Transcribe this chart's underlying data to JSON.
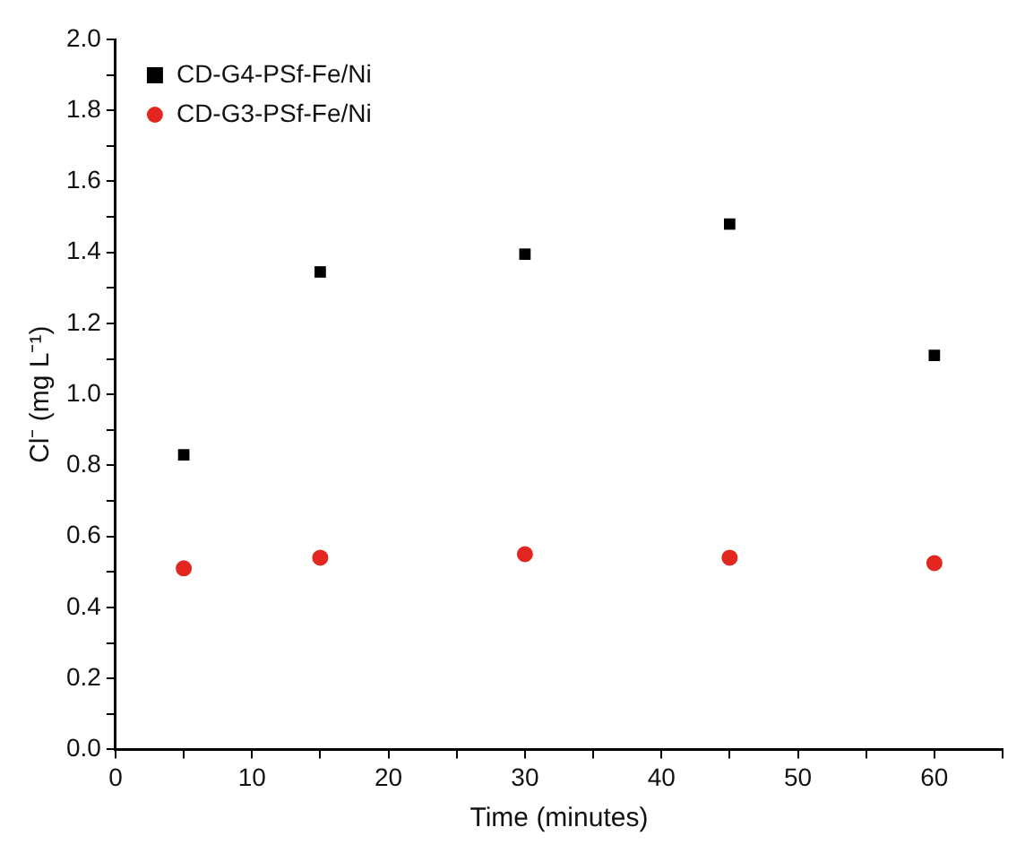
{
  "chart_data": {
    "type": "scatter",
    "xlabel": "Time (minutes)",
    "ylabel": "Cl⁻ (mg L⁻¹)",
    "x": [
      5,
      15,
      30,
      45,
      60
    ],
    "series": [
      {
        "name": "CD-G4-PSf-Fe/Ni",
        "color": "#000000",
        "marker": "square",
        "values": [
          0.83,
          1.345,
          1.395,
          1.48,
          1.11
        ]
      },
      {
        "name": "CD-G3-PSf-Fe/Ni",
        "color": "#e3261f",
        "marker": "circle",
        "values": [
          0.51,
          0.54,
          0.55,
          0.54,
          0.525
        ]
      }
    ],
    "xlim": [
      0,
      65
    ],
    "xticks": [
      0,
      {
        "value": 5,
        "label": null
      },
      10,
      {
        "value": 15,
        "label": null
      },
      20,
      {
        "value": 25,
        "label": null
      },
      30,
      {
        "value": 35,
        "label": null
      },
      40,
      {
        "value": 45,
        "label": null
      },
      50,
      {
        "value": 55,
        "label": null
      },
      60,
      {
        "value": 65,
        "label": null
      }
    ],
    "ylim": [
      0,
      2
    ],
    "yticks": [
      {
        "value": 0,
        "label": "0.0"
      },
      {
        "value": 0.1,
        "label": null
      },
      {
        "value": 0.2,
        "label": "0.2"
      },
      {
        "value": 0.3,
        "label": null
      },
      {
        "value": 0.4,
        "label": "0.4"
      },
      {
        "value": 0.5,
        "label": null
      },
      {
        "value": 0.6,
        "label": "0.6"
      },
      {
        "value": 0.7,
        "label": null
      },
      {
        "value": 0.8,
        "label": "0.8"
      },
      {
        "value": 0.9,
        "label": null
      },
      {
        "value": 1,
        "label": "1.0"
      },
      {
        "value": 1.1,
        "label": null
      },
      {
        "value": 1.2,
        "label": "1.2"
      },
      {
        "value": 1.3,
        "label": null
      },
      {
        "value": 1.4,
        "label": "1.4"
      },
      {
        "value": 1.5,
        "label": null
      },
      {
        "value": 1.6,
        "label": "1.6"
      },
      {
        "value": 1.7,
        "label": null
      },
      {
        "value": 1.8,
        "label": "1.8"
      },
      {
        "value": 1.9,
        "label": null
      },
      {
        "value": 2,
        "label": "2.0"
      }
    ],
    "grid": false,
    "legend": "top left"
  }
}
